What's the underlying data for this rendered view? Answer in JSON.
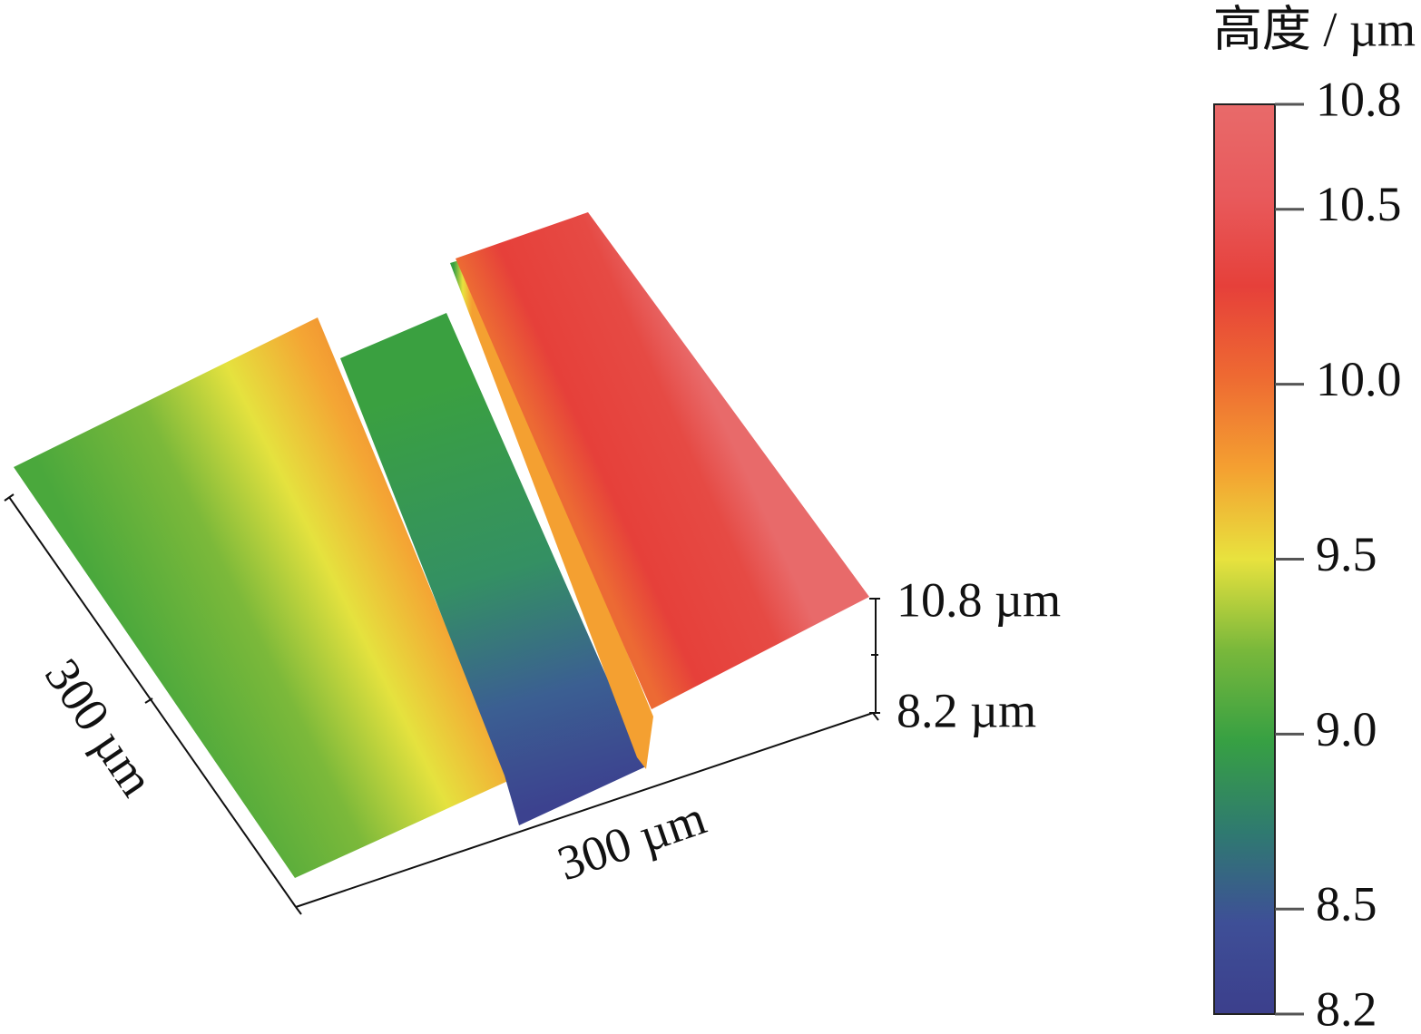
{
  "chart_data": {
    "type": "surface",
    "colorbar": {
      "title": "高度 / µm",
      "ylim": [
        8.2,
        10.8
      ],
      "yticks": [
        10.8,
        10.5,
        {
          "value": 10,
          "label": "10.0"
        },
        9.5,
        {
          "value": 9,
          "label": "9.0"
        },
        8.5,
        8.2
      ],
      "colormap": [
        "#3c3f8c",
        "#3e4f97",
        "#2f7a70",
        "#37a043",
        "#79b83b",
        "#e8e23e",
        "#f4a031",
        "#ee6a32",
        "#e6403a",
        "#e85a5c",
        "#e86a6a"
      ]
    },
    "y_label": "300 µm",
    "x_label": "300 µm",
    "z_labels": [
      "10.8 µm",
      "8.2 µm"
    ]
  }
}
